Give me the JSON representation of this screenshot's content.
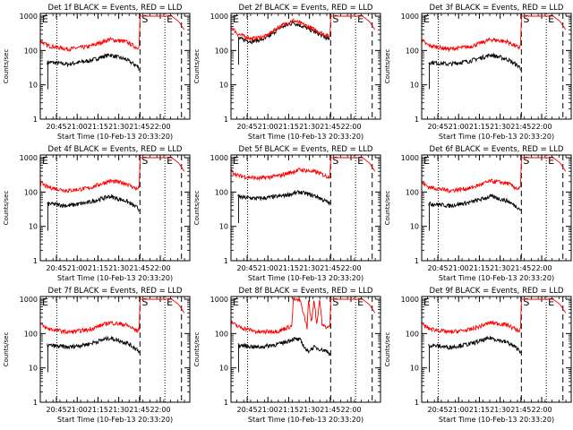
{
  "figure": {
    "ylabel": "Counts/sec",
    "xlabel": "Start Time (10-Feb-13 20:33:20)",
    "x_tick_labels": [
      "20:45",
      "21:00",
      "21:15",
      "21:30",
      "21:45",
      "22:00"
    ],
    "y_tick_labels": [
      "1",
      "10",
      "100",
      "1000"
    ],
    "markers": [
      {
        "label": "E",
        "style": "dotted",
        "time_min": 0
      },
      {
        "label": "S",
        "style": "dashed",
        "time_min": 72
      },
      {
        "label": "E",
        "style": "dotted",
        "time_min": 90
      },
      {
        "label": "",
        "style": "dotted",
        "time_min": 12
      },
      {
        "label": "",
        "style": "dashed",
        "time_min": 102
      }
    ],
    "colors": {
      "events": "#000000",
      "lld": "#ff0000",
      "axes": "#000000",
      "background": "#ffffff"
    }
  },
  "chart_data": [
    {
      "type": "line",
      "title": "Det 1f BLACK = Events, RED = LLD",
      "xlabel": "Start Time (10-Feb-13 20:33:20)",
      "ylabel": "Counts/sec",
      "xlim": [
        0,
        108
      ],
      "ylim": [
        1,
        1200
      ],
      "yscale": "log",
      "series": [
        {
          "name": "Events",
          "color": "#000000",
          "x": [
            5,
            8,
            20,
            35,
            50,
            62,
            70,
            71.5
          ],
          "values": [
            45,
            45,
            40,
            50,
            75,
            55,
            35,
            30
          ]
        },
        {
          "name": "LLD",
          "color": "#ff0000",
          "x": [
            0,
            5,
            20,
            35,
            50,
            62,
            70,
            71.5,
            72,
            80,
            95,
            100,
            104
          ],
          "values": [
            190,
            140,
            110,
            130,
            210,
            180,
            120,
            140,
            1000,
            1000,
            1000,
            700,
            400
          ]
        }
      ]
    },
    {
      "type": "line",
      "title": "Det 2f BLACK = Events, RED = LLD",
      "xlabel": "Start Time (10-Feb-13 20:33:20)",
      "ylabel": "Counts/sec",
      "xlim": [
        0,
        108
      ],
      "ylim": [
        1,
        1200
      ],
      "yscale": "log",
      "series": [
        {
          "name": "Events",
          "color": "#000000",
          "x": [
            5,
            8,
            15,
            25,
            35,
            45,
            55,
            65,
            71.5
          ],
          "values": [
            230,
            210,
            185,
            220,
            450,
            650,
            450,
            280,
            200
          ]
        },
        {
          "name": "LLD",
          "color": "#ff0000",
          "x": [
            0,
            5,
            15,
            25,
            35,
            45,
            55,
            65,
            71.5,
            72,
            80,
            95,
            100,
            104
          ],
          "values": [
            500,
            300,
            220,
            260,
            500,
            750,
            520,
            330,
            250,
            1000,
            1000,
            1000,
            700,
            400
          ]
        }
      ]
    },
    {
      "type": "line",
      "title": "Det 3f BLACK = Events, RED = LLD",
      "xlabel": "Start Time (10-Feb-13 20:33:20)",
      "ylabel": "Counts/sec",
      "xlim": [
        0,
        108
      ],
      "ylim": [
        1,
        1200
      ],
      "yscale": "log",
      "series": [
        {
          "name": "Events",
          "color": "#000000",
          "x": [
            5,
            8,
            20,
            35,
            50,
            62,
            70,
            71.5
          ],
          "values": [
            45,
            45,
            40,
            50,
            75,
            55,
            35,
            30
          ]
        },
        {
          "name": "LLD",
          "color": "#ff0000",
          "x": [
            0,
            5,
            20,
            35,
            50,
            62,
            70,
            71.5,
            72,
            80,
            95,
            100,
            104
          ],
          "values": [
            190,
            140,
            110,
            130,
            210,
            180,
            120,
            140,
            1000,
            1000,
            1000,
            700,
            400
          ]
        }
      ]
    },
    {
      "type": "line",
      "title": "Det 4f BLACK = Events, RED = LLD",
      "xlabel": "Start Time (10-Feb-13 20:33:20)",
      "ylabel": "Counts/sec",
      "xlim": [
        0,
        108
      ],
      "ylim": [
        1,
        1200
      ],
      "yscale": "log",
      "series": [
        {
          "name": "Events",
          "color": "#000000",
          "x": [
            5,
            8,
            20,
            35,
            50,
            62,
            70,
            71.5
          ],
          "values": [
            45,
            45,
            40,
            50,
            75,
            55,
            35,
            30
          ]
        },
        {
          "name": "LLD",
          "color": "#ff0000",
          "x": [
            0,
            5,
            20,
            35,
            50,
            62,
            70,
            71.5,
            72,
            80,
            95,
            100,
            104
          ],
          "values": [
            190,
            140,
            110,
            130,
            210,
            180,
            120,
            140,
            1000,
            1000,
            1000,
            700,
            400
          ]
        }
      ]
    },
    {
      "type": "line",
      "title": "Det 5f BLACK = Events, RED = LLD",
      "xlabel": "Start Time (10-Feb-13 20:33:20)",
      "ylabel": "Counts/sec",
      "xlim": [
        0,
        108
      ],
      "ylim": [
        1,
        1200
      ],
      "yscale": "log",
      "series": [
        {
          "name": "Events",
          "color": "#000000",
          "x": [
            5,
            8,
            20,
            35,
            50,
            62,
            70,
            71.5
          ],
          "values": [
            75,
            70,
            65,
            75,
            100,
            75,
            50,
            45
          ]
        },
        {
          "name": "LLD",
          "color": "#ff0000",
          "x": [
            0,
            5,
            20,
            35,
            50,
            62,
            70,
            71.5,
            72,
            80,
            95,
            100,
            104
          ],
          "values": [
            420,
            300,
            250,
            300,
            450,
            380,
            280,
            300,
            1000,
            1000,
            1000,
            700,
            400
          ]
        }
      ]
    },
    {
      "type": "line",
      "title": "Det 6f BLACK = Events, RED = LLD",
      "xlabel": "Start Time (10-Feb-13 20:33:20)",
      "ylabel": "Counts/sec",
      "xlim": [
        0,
        108
      ],
      "ylim": [
        1,
        1200
      ],
      "yscale": "log",
      "series": [
        {
          "name": "Events",
          "color": "#000000",
          "x": [
            5,
            8,
            20,
            35,
            50,
            62,
            70,
            71.5
          ],
          "values": [
            45,
            45,
            40,
            50,
            75,
            55,
            35,
            30
          ]
        },
        {
          "name": "LLD",
          "color": "#ff0000",
          "x": [
            0,
            5,
            20,
            35,
            50,
            62,
            70,
            71.5,
            72,
            80,
            95,
            100,
            104
          ],
          "values": [
            190,
            140,
            110,
            130,
            210,
            180,
            120,
            140,
            1000,
            1000,
            1000,
            700,
            400
          ]
        }
      ]
    },
    {
      "type": "line",
      "title": "Det 7f BLACK = Events, RED = LLD",
      "xlabel": "Start Time (10-Feb-13 20:33:20)",
      "ylabel": "Counts/sec",
      "xlim": [
        0,
        108
      ],
      "ylim": [
        1,
        1200
      ],
      "yscale": "log",
      "series": [
        {
          "name": "Events",
          "color": "#000000",
          "x": [
            5,
            8,
            20,
            35,
            50,
            62,
            70,
            71.5
          ],
          "values": [
            45,
            45,
            40,
            50,
            75,
            55,
            35,
            30
          ]
        },
        {
          "name": "LLD",
          "color": "#ff0000",
          "x": [
            0,
            5,
            20,
            35,
            50,
            62,
            70,
            71.5,
            72,
            80,
            95,
            100,
            104
          ],
          "values": [
            190,
            140,
            110,
            130,
            210,
            180,
            120,
            140,
            1000,
            1000,
            1000,
            700,
            400
          ]
        }
      ]
    },
    {
      "type": "line",
      "title": "Det 8f BLACK = Events, RED = LLD",
      "xlabel": "Start Time (10-Feb-13 20:33:20)",
      "ylabel": "Counts/sec",
      "xlim": [
        0,
        108
      ],
      "ylim": [
        1,
        1200
      ],
      "yscale": "log",
      "series": [
        {
          "name": "Events",
          "color": "#000000",
          "x": [
            5,
            8,
            20,
            35,
            45,
            50,
            55,
            60,
            65,
            70,
            71.5
          ],
          "values": [
            45,
            45,
            40,
            50,
            70,
            65,
            30,
            40,
            35,
            30,
            25
          ]
        },
        {
          "name": "LLD",
          "color": "#ff0000",
          "x": [
            0,
            5,
            20,
            35,
            44,
            45,
            50,
            55,
            56,
            58,
            60,
            62,
            64,
            66,
            70,
            71.5,
            72,
            80,
            95,
            100,
            104
          ],
          "values": [
            220,
            160,
            110,
            120,
            170,
            1000,
            900,
            150,
            1000,
            200,
            1000,
            180,
            1000,
            170,
            150,
            160,
            1000,
            1000,
            1000,
            700,
            400
          ]
        }
      ]
    },
    {
      "type": "line",
      "title": "Det 9f BLACK = Events, RED = LLD",
      "xlabel": "Start Time (10-Feb-13 20:33:20)",
      "ylabel": "Counts/sec",
      "xlim": [
        0,
        108
      ],
      "ylim": [
        1,
        1200
      ],
      "yscale": "log",
      "series": [
        {
          "name": "Events",
          "color": "#000000",
          "x": [
            5,
            8,
            20,
            35,
            50,
            62,
            70,
            71.5
          ],
          "values": [
            45,
            45,
            40,
            50,
            75,
            55,
            35,
            30
          ]
        },
        {
          "name": "LLD",
          "color": "#ff0000",
          "x": [
            0,
            5,
            20,
            35,
            50,
            62,
            70,
            71.5,
            72,
            80,
            95,
            100,
            104
          ],
          "values": [
            190,
            140,
            110,
            130,
            210,
            180,
            120,
            140,
            1000,
            1000,
            1000,
            700,
            400
          ]
        }
      ]
    }
  ]
}
